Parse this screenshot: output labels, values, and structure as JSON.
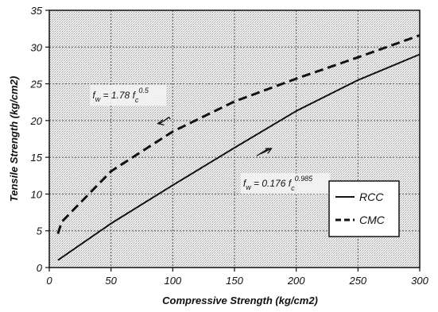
{
  "chart_data": {
    "type": "line",
    "title": "",
    "xlabel": "Compressive Strength (kg/cm2)",
    "ylabel": "Tensile Strength (kg/cm2)",
    "xlim": [
      0,
      300
    ],
    "ylim": [
      0,
      35
    ],
    "xticks": [
      0,
      50,
      100,
      150,
      200,
      250,
      300
    ],
    "xtick_labels": [
      "0",
      "50",
      "100",
      "150",
      "200",
      "250",
      "300"
    ],
    "yticks": [
      0,
      5,
      10,
      15,
      20,
      25,
      30,
      35
    ],
    "ytick_labels": [
      "0",
      "5",
      "10",
      "15",
      "20",
      "25",
      "30",
      "35"
    ],
    "grid": true,
    "legend": "bottom-right",
    "series": [
      {
        "name": "RCC",
        "style": "solid",
        "color": "#111111",
        "x": [
          7,
          50,
          100,
          150,
          200,
          250,
          300
        ],
        "y": [
          1.0,
          6.0,
          11.2,
          16.3,
          21.3,
          25.5,
          29.0
        ]
      },
      {
        "name": "CMC",
        "style": "dashed",
        "color": "#111111",
        "x": [
          7,
          10,
          50,
          100,
          150,
          200,
          250,
          300
        ],
        "y": [
          4.6,
          6.2,
          13.1,
          18.5,
          22.6,
          25.7,
          28.6,
          31.6
        ]
      }
    ],
    "annotations": [
      {
        "id": "cmc",
        "text": "f = 1.78 f",
        "sub": "w",
        "sub2": "c",
        "sup": "0.5",
        "label_x": 35,
        "label_y": 23.0,
        "arrow_from": [
          98,
          20.2
        ],
        "arrow_to": [
          88,
          19.6
        ]
      },
      {
        "id": "rcc",
        "text": "f = 0.176 f",
        "sub": "w",
        "sub2": "c",
        "sup": "0.985",
        "label_x": 157,
        "label_y": 11.0,
        "arrow_from": [
          168,
          15.2
        ],
        "arrow_to": [
          180,
          16.2
        ]
      }
    ]
  }
}
